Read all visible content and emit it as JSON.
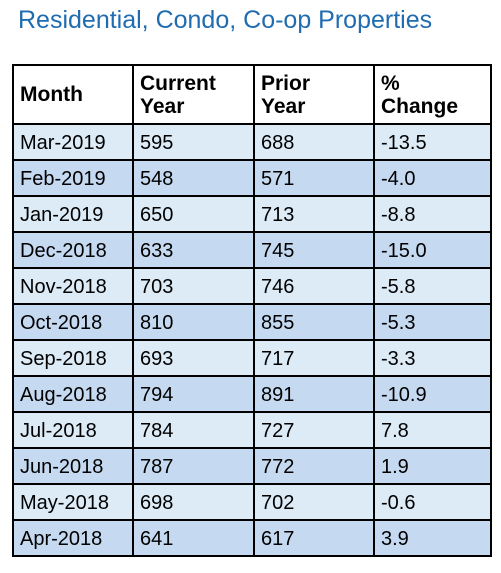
{
  "title": "Residential, Condo, Co-op Properties",
  "table": {
    "headers": [
      "Month",
      "Current Year",
      "Prior Year",
      "% Change"
    ],
    "rows": [
      [
        "Mar-2019",
        "595",
        "688",
        "-13.5"
      ],
      [
        "Feb-2019",
        "548",
        "571",
        "-4.0"
      ],
      [
        "Jan-2019",
        "650",
        "713",
        "-8.8"
      ],
      [
        "Dec-2018",
        "633",
        "745",
        "-15.0"
      ],
      [
        "Nov-2018",
        "703",
        "746",
        "-5.8"
      ],
      [
        "Oct-2018",
        "810",
        "855",
        "-5.3"
      ],
      [
        "Sep-2018",
        "693",
        "717",
        "-3.3"
      ],
      [
        "Aug-2018",
        "794",
        "891",
        "-10.9"
      ],
      [
        "Jul-2018",
        "784",
        "727",
        "7.8"
      ],
      [
        "Jun-2018",
        "787",
        "772",
        "1.9"
      ],
      [
        "May-2018",
        "698",
        "702",
        "-0.6"
      ],
      [
        "Apr-2018",
        "641",
        "617",
        "3.9"
      ]
    ]
  },
  "colors": {
    "title": "#1f6cb1",
    "row_light": "#ddebf7",
    "row_dark": "#c5d9f1",
    "border": "#000000"
  }
}
